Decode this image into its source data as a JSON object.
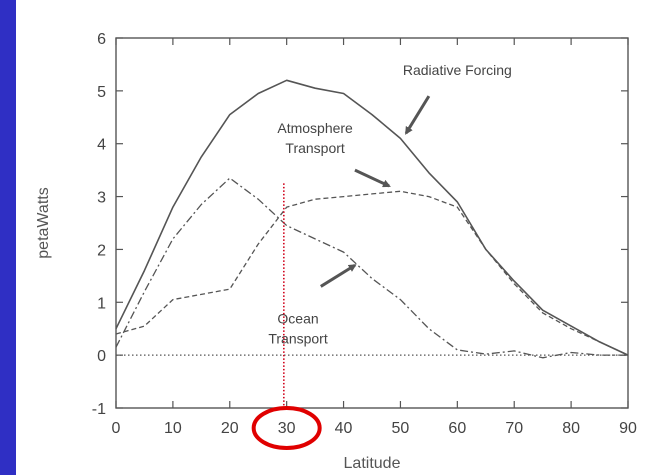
{
  "chart_data": {
    "type": "line",
    "xlabel": "Latitude",
    "ylabel": "petaWatts",
    "xlim": [
      0,
      90
    ],
    "ylim": [
      -1,
      6
    ],
    "x_ticks": [
      0,
      10,
      20,
      30,
      40,
      50,
      60,
      70,
      80,
      90
    ],
    "y_ticks": [
      -1,
      0,
      1,
      2,
      3,
      4,
      5,
      6
    ],
    "grid": false,
    "series": [
      {
        "name": "Radiative Forcing",
        "style": "solid",
        "x": [
          0,
          5,
          10,
          15,
          20,
          25,
          30,
          35,
          40,
          45,
          50,
          55,
          60,
          65,
          70,
          75,
          80,
          85,
          90
        ],
        "y": [
          0.5,
          1.6,
          2.8,
          3.75,
          4.55,
          4.95,
          5.2,
          5.05,
          4.95,
          4.55,
          4.1,
          3.45,
          2.9,
          2.0,
          1.4,
          0.85,
          0.55,
          0.25,
          0.0
        ]
      },
      {
        "name": "Atmosphere Transport",
        "style": "dashed",
        "x": [
          0,
          5,
          10,
          15,
          20,
          25,
          30,
          35,
          40,
          45,
          50,
          55,
          60,
          65,
          70,
          75,
          80,
          85,
          90
        ],
        "y": [
          0.4,
          0.55,
          1.05,
          1.15,
          1.25,
          2.1,
          2.8,
          2.95,
          3.0,
          3.05,
          3.1,
          3.0,
          2.8,
          2.0,
          1.35,
          0.8,
          0.5,
          0.25,
          0.0
        ]
      },
      {
        "name": "Ocean Transport",
        "style": "dashdot",
        "x": [
          0,
          5,
          10,
          15,
          20,
          25,
          30,
          35,
          40,
          45,
          50,
          55,
          60,
          65,
          70,
          75,
          80,
          85,
          90
        ],
        "y": [
          0.15,
          1.2,
          2.2,
          2.85,
          3.35,
          2.95,
          2.45,
          2.2,
          1.95,
          1.45,
          1.05,
          0.5,
          0.1,
          0.02,
          0.08,
          -0.05,
          0.05,
          0.0,
          0.0
        ]
      },
      {
        "name": "zero",
        "style": "dotted",
        "x": [
          0,
          90
        ],
        "y": [
          0,
          0
        ]
      }
    ],
    "annotations": [
      {
        "text": "Radiative Forcing",
        "lines": [
          "Radiative Forcing"
        ],
        "x": 60,
        "y": 5.3,
        "arrow_from": [
          55,
          4.9
        ],
        "arrow_to": [
          51,
          4.2
        ]
      },
      {
        "text": "Atmosphere Transport",
        "lines": [
          "Atmosphere",
          "Transport"
        ],
        "x": 35,
        "y": 4.2,
        "arrow_from": [
          42,
          3.5
        ],
        "arrow_to": [
          48,
          3.2
        ]
      },
      {
        "text": "Ocean Transport",
        "lines": [
          "Ocean",
          "Transport"
        ],
        "x": 32,
        "y": 0.6,
        "arrow_from": [
          36,
          1.3
        ],
        "arrow_to": [
          42,
          1.7
        ]
      }
    ],
    "marker_line_x": 29.5,
    "highlighted_tick": 30
  }
}
